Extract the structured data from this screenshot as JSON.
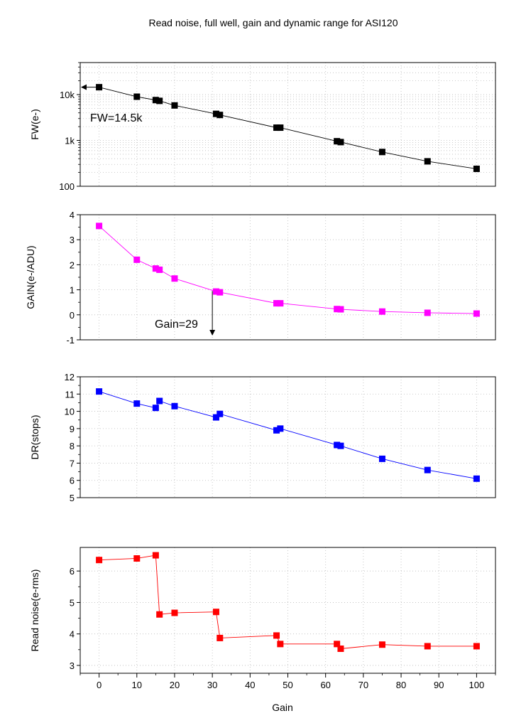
{
  "chart_data": {
    "type": "line",
    "title": "Read noise, full well, gain and dynamic range for ASI120",
    "xlabel": "Gain",
    "xlim": [
      -5,
      105
    ],
    "x_ticks": [
      0,
      10,
      20,
      30,
      40,
      50,
      60,
      70,
      80,
      90,
      100
    ],
    "x_tick_labels": [
      "0",
      "10",
      "20",
      "30",
      "40",
      "50",
      "60",
      "70",
      "80",
      "90",
      "100"
    ],
    "x": [
      0,
      10,
      15,
      16,
      20,
      31,
      32,
      47,
      48,
      63,
      64,
      75,
      87,
      100
    ],
    "grid": true,
    "panels": [
      {
        "id": "fw",
        "ylabel": "FW(e-)",
        "yscale": "log",
        "ylim": [
          100,
          50000
        ],
        "y_ticks": [
          100,
          1000,
          10000
        ],
        "y_tick_labels": [
          "100",
          "1k",
          "10k"
        ],
        "color": "#000000",
        "values": [
          14500,
          9000,
          7600,
          7300,
          5800,
          3800,
          3600,
          1900,
          1900,
          960,
          920,
          560,
          350,
          240
        ],
        "annotation": {
          "text": "FW=14.5k",
          "arrow_to": [
            0,
            14500
          ]
        }
      },
      {
        "id": "gain",
        "ylabel": "GAIN(e-/ADU)",
        "yscale": "linear",
        "ylim": [
          -1,
          4
        ],
        "y_ticks": [
          -1,
          0,
          1,
          2,
          3,
          4
        ],
        "y_tick_labels": [
          "-1",
          "0",
          "1",
          "2",
          "3",
          "4"
        ],
        "color": "#ff00ff",
        "values": [
          3.55,
          2.2,
          1.85,
          1.8,
          1.45,
          0.93,
          0.9,
          0.46,
          0.46,
          0.23,
          0.22,
          0.13,
          0.08,
          0.05
        ],
        "annotation": {
          "text": "Gain=29",
          "arrow_to": [
            30,
            -0.8
          ]
        }
      },
      {
        "id": "dr",
        "ylabel": "DR(stops)",
        "yscale": "linear",
        "ylim": [
          5,
          12
        ],
        "y_ticks": [
          5,
          6,
          7,
          8,
          9,
          10,
          11,
          12
        ],
        "y_tick_labels": [
          "5",
          "6",
          "7",
          "8",
          "9",
          "10",
          "11",
          "12"
        ],
        "color": "#0000ff",
        "values": [
          11.15,
          10.45,
          10.2,
          10.6,
          10.3,
          9.65,
          9.85,
          8.9,
          9.0,
          8.05,
          8.0,
          7.25,
          6.6,
          6.1
        ]
      },
      {
        "id": "rn",
        "ylabel": "Read noise(e-rms)",
        "yscale": "linear",
        "ylim": [
          2.75,
          6.75
        ],
        "y_ticks": [
          3,
          4,
          5,
          6
        ],
        "y_tick_labels": [
          "3",
          "4",
          "5",
          "6"
        ],
        "color": "#ff0000",
        "values": [
          6.35,
          6.4,
          6.5,
          4.62,
          4.67,
          4.7,
          3.87,
          3.95,
          3.68,
          3.68,
          3.53,
          3.66,
          3.61,
          3.61
        ]
      }
    ]
  }
}
